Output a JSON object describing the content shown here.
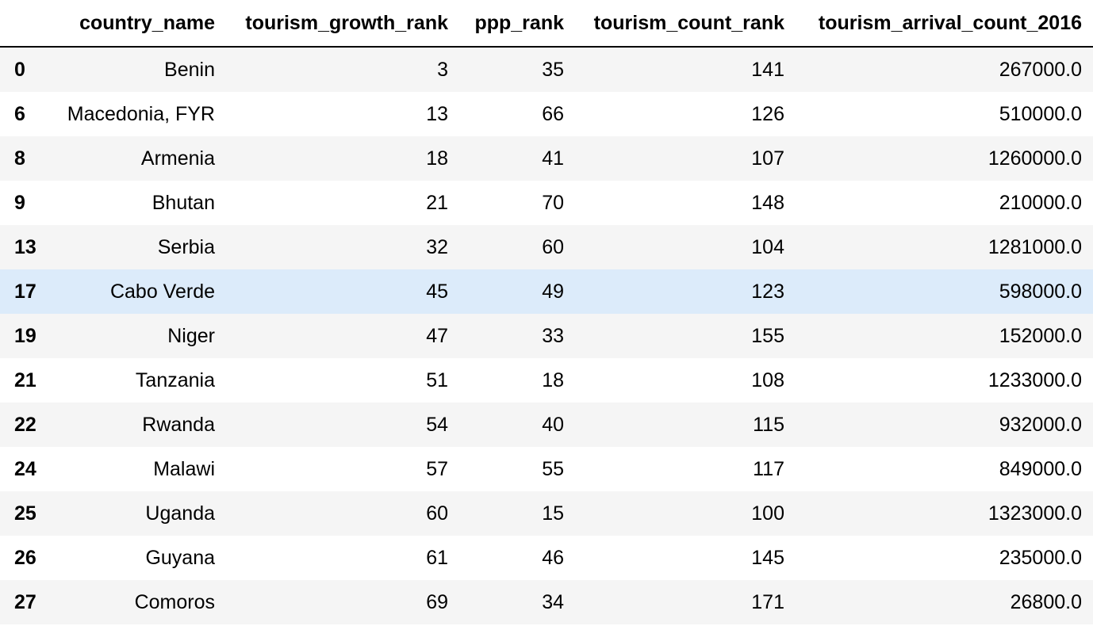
{
  "table": {
    "index_header": "",
    "columns": [
      "country_name",
      "tourism_growth_rank",
      "ppp_rank",
      "tourism_count_rank",
      "tourism_arrival_count_2016"
    ],
    "rows": [
      {
        "index": "0",
        "cells": [
          "Benin",
          "3",
          "35",
          "141",
          "267000.0"
        ]
      },
      {
        "index": "6",
        "cells": [
          "Macedonia, FYR",
          "13",
          "66",
          "126",
          "510000.0"
        ]
      },
      {
        "index": "8",
        "cells": [
          "Armenia",
          "18",
          "41",
          "107",
          "1260000.0"
        ]
      },
      {
        "index": "9",
        "cells": [
          "Bhutan",
          "21",
          "70",
          "148",
          "210000.0"
        ]
      },
      {
        "index": "13",
        "cells": [
          "Serbia",
          "32",
          "60",
          "104",
          "1281000.0"
        ]
      },
      {
        "index": "17",
        "cells": [
          "Cabo Verde",
          "45",
          "49",
          "123",
          "598000.0"
        ]
      },
      {
        "index": "19",
        "cells": [
          "Niger",
          "47",
          "33",
          "155",
          "152000.0"
        ]
      },
      {
        "index": "21",
        "cells": [
          "Tanzania",
          "51",
          "18",
          "108",
          "1233000.0"
        ]
      },
      {
        "index": "22",
        "cells": [
          "Rwanda",
          "54",
          "40",
          "115",
          "932000.0"
        ]
      },
      {
        "index": "24",
        "cells": [
          "Malawi",
          "57",
          "55",
          "117",
          "849000.0"
        ]
      },
      {
        "index": "25",
        "cells": [
          "Uganda",
          "60",
          "15",
          "100",
          "1323000.0"
        ]
      },
      {
        "index": "26",
        "cells": [
          "Guyana",
          "61",
          "46",
          "145",
          "235000.0"
        ]
      },
      {
        "index": "27",
        "cells": [
          "Comoros",
          "69",
          "34",
          "171",
          "26800.0"
        ]
      }
    ],
    "highlighted_row_index": "17"
  },
  "colors": {
    "stripe": "#f5f5f5",
    "hover": "#dcebfa",
    "header_rule": "#000000"
  }
}
